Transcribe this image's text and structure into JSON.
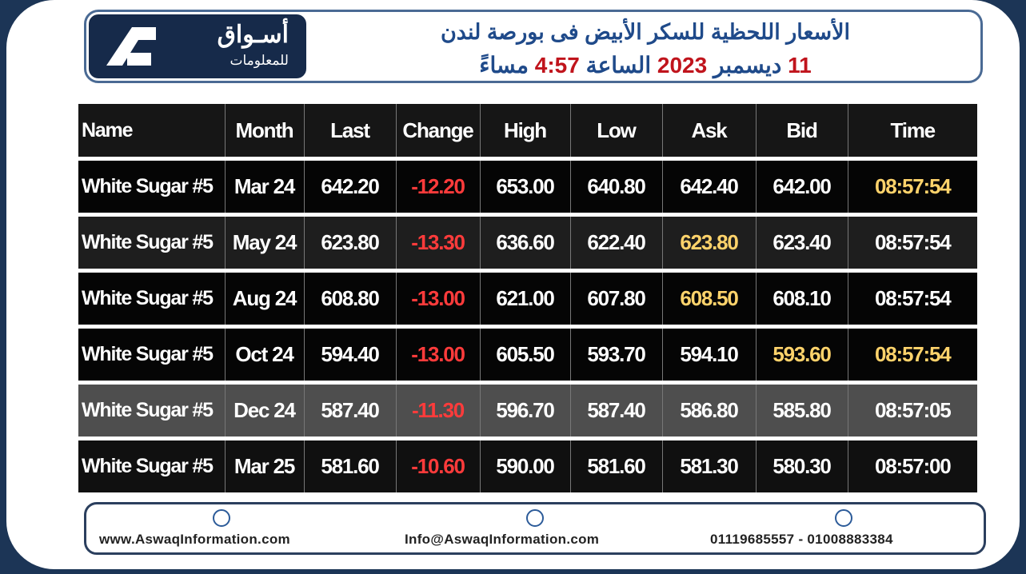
{
  "header": {
    "logo_title": "أسـواق",
    "logo_subtitle": "للمعلومات",
    "title": "الأسعار اللحظية للسكر الأبيض فى بورصة لندن",
    "date_line": [
      {
        "text": "11",
        "accent": true
      },
      {
        "text": "ديسمبر",
        "accent": false
      },
      {
        "text": "2023",
        "accent": true
      },
      {
        "text": "الساعة",
        "accent": false
      },
      {
        "text": "4:57",
        "accent": true
      },
      {
        "text": "مساءً",
        "accent": false
      }
    ]
  },
  "table": {
    "columns": [
      "Name",
      "Month",
      "Last",
      "Change",
      "High",
      "Low",
      "Ask",
      "Bid",
      "Time"
    ],
    "negative_column": "Change",
    "rows": [
      {
        "cells": [
          "White Sugar #5",
          "Mar 24",
          "642.20",
          "-12.20",
          "653.00",
          "640.80",
          "642.40",
          "642.00",
          "08:57:54"
        ],
        "highlight": [
          "Time"
        ]
      },
      {
        "cells": [
          "White Sugar #5",
          "May 24",
          "623.80",
          "-13.30",
          "636.60",
          "622.40",
          "623.80",
          "623.40",
          "08:57:54"
        ],
        "highlight": [
          "Ask"
        ]
      },
      {
        "cells": [
          "White Sugar #5",
          "Aug 24",
          "608.80",
          "-13.00",
          "621.00",
          "607.80",
          "608.50",
          "608.10",
          "08:57:54"
        ],
        "highlight": [
          "Ask"
        ]
      },
      {
        "cells": [
          "White Sugar #5",
          "Oct 24",
          "594.40",
          "-13.00",
          "605.50",
          "593.70",
          "594.10",
          "593.60",
          "08:57:54"
        ],
        "highlight": [
          "Bid",
          "Time"
        ]
      },
      {
        "cells": [
          "White Sugar #5",
          "Dec 24",
          "587.40",
          "-11.30",
          "596.70",
          "587.40",
          "586.80",
          "585.80",
          "08:57:05"
        ],
        "highlight": []
      },
      {
        "cells": [
          "White Sugar #5",
          "Mar 25",
          "581.60",
          "-10.60",
          "590.00",
          "581.60",
          "581.30",
          "580.30",
          "08:57:00"
        ],
        "highlight": []
      }
    ]
  },
  "footer": {
    "website": "www.AswaqInformation.com",
    "email": "Info@AswaqInformation.com",
    "phones": "01119685557 - 01008883384"
  }
}
